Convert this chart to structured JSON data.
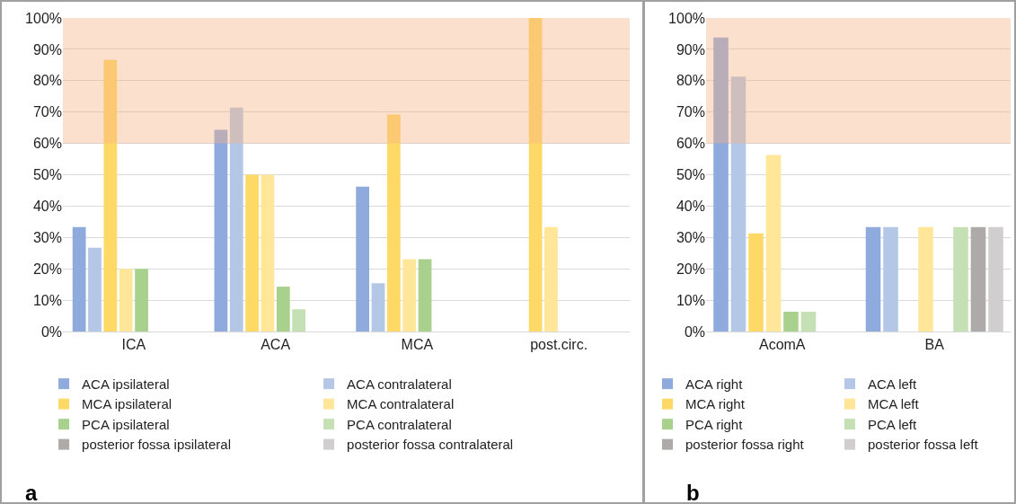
{
  "chart_data": [
    {
      "type": "bar",
      "categories": [
        "ICA",
        "ACA",
        "MCA",
        "post.circ."
      ],
      "annotations": [
        "a"
      ],
      "series": [
        {
          "name": "ACA ipsilateral",
          "color": "#8faadc",
          "values": [
            33.3,
            64.3,
            46.2,
            0
          ]
        },
        {
          "name": "ACA contralateral",
          "color": "#b4c7e7",
          "values": [
            26.7,
            71.4,
            15.4,
            0
          ]
        },
        {
          "name": "MCA ipsilateral",
          "color": "#ffd966",
          "values": [
            86.7,
            50,
            69.2,
            100
          ]
        },
        {
          "name": "MCA contralateral",
          "color": "#ffe699",
          "values": [
            20,
            50,
            23.1,
            33.3
          ]
        },
        {
          "name": "PCA ipsilateral",
          "color": "#a9d18e",
          "values": [
            20,
            14.3,
            23.1,
            0
          ]
        },
        {
          "name": "PCA contralateral",
          "color": "#c5e0b4",
          "values": [
            0,
            7.1,
            0,
            0
          ]
        },
        {
          "name": "posterior fossa ipsilateral",
          "color": "#aeaaaa",
          "values": [
            0,
            0,
            0,
            0
          ]
        },
        {
          "name": "posterior fossa contralateral",
          "color": "#d0cece",
          "values": [
            0,
            0,
            0,
            0
          ]
        }
      ],
      "ylim": [
        0,
        100
      ],
      "yticks": [
        {
          "value": 0,
          "label": "0%"
        },
        {
          "value": 10,
          "label": "10%"
        },
        {
          "value": 20,
          "label": "20%"
        },
        {
          "value": 30,
          "label": "30%"
        },
        {
          "value": 40,
          "label": "40%"
        },
        {
          "value": 50,
          "label": "50%"
        },
        {
          "value": 60,
          "label": "60%"
        },
        {
          "value": 70,
          "label": "70%"
        },
        {
          "value": 80,
          "label": "80%"
        },
        {
          "value": 90,
          "label": "90%"
        },
        {
          "value": 100,
          "label": "100%"
        }
      ],
      "bands": [
        {
          "axis": "y",
          "from": 60,
          "to": 100,
          "color": "#f4b183"
        }
      ],
      "grid": "y",
      "legend": "bottom"
    },
    {
      "type": "bar",
      "categories": [
        "AcomA",
        "BA"
      ],
      "annotations": [
        "b"
      ],
      "series": [
        {
          "name": "ACA right",
          "color": "#8faadc",
          "values": [
            93.8,
            33.3
          ]
        },
        {
          "name": "ACA left",
          "color": "#b4c7e7",
          "values": [
            81.3,
            33.3
          ]
        },
        {
          "name": "MCA right",
          "color": "#ffd966",
          "values": [
            31.3,
            0
          ]
        },
        {
          "name": "MCA left",
          "color": "#ffe699",
          "values": [
            56.3,
            33.3
          ]
        },
        {
          "name": "PCA right",
          "color": "#a9d18e",
          "values": [
            6.3,
            0
          ]
        },
        {
          "name": "PCA left",
          "color": "#c5e0b4",
          "values": [
            6.3,
            33.3
          ]
        },
        {
          "name": "posterior fossa right",
          "color": "#aeaaaa",
          "values": [
            0,
            33.3
          ]
        },
        {
          "name": "posterior fossa left",
          "color": "#d0cece",
          "values": [
            0,
            33.3
          ]
        }
      ],
      "ylim": [
        0,
        100
      ],
      "yticks": [
        {
          "value": 0,
          "label": "0%"
        },
        {
          "value": 10,
          "label": "10%"
        },
        {
          "value": 20,
          "label": "20%"
        },
        {
          "value": 30,
          "label": "30%"
        },
        {
          "value": 40,
          "label": "40%"
        },
        {
          "value": 50,
          "label": "50%"
        },
        {
          "value": 60,
          "label": "60%"
        },
        {
          "value": 70,
          "label": "70%"
        },
        {
          "value": 80,
          "label": "80%"
        },
        {
          "value": 90,
          "label": "90%"
        },
        {
          "value": 100,
          "label": "100%"
        }
      ],
      "bands": [
        {
          "axis": "y",
          "from": 60,
          "to": 100,
          "color": "#f4b183"
        }
      ],
      "grid": "y",
      "legend": "bottom"
    }
  ]
}
